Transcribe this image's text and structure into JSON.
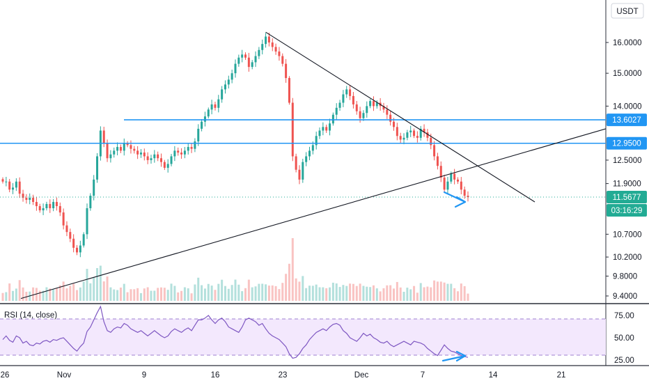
{
  "chart_data": {
    "type": "candlestick",
    "currency": "USDT",
    "price_axis": {
      "scale": "log",
      "ticks": [
        "16.0000",
        "15.0000",
        "14.0000",
        "12.5000",
        "11.9000",
        "10.7000",
        "10.2000",
        "9.8000",
        "9.4000"
      ]
    },
    "date_axis": {
      "ticks": [
        "26",
        "Nov",
        "9",
        "16",
        "23",
        "Dec",
        "7",
        "14",
        "21"
      ]
    },
    "price_series": [
      11.95,
      11.95,
      11.75,
      11.8,
      11.95,
      11.65,
      11.55,
      11.5,
      11.55,
      11.45,
      11.35,
      11.25,
      11.3,
      11.4,
      11.3,
      11.45,
      11.35,
      11.2,
      10.9,
      10.75,
      10.6,
      10.4,
      10.3,
      10.45,
      10.7,
      11.3,
      11.6,
      12.0,
      12.6,
      13.3,
      12.95,
      12.55,
      12.65,
      12.75,
      12.85,
      12.75,
      12.95,
      12.9,
      12.8,
      12.75,
      12.65,
      12.7,
      12.6,
      12.5,
      12.55,
      12.65,
      12.55,
      12.45,
      12.3,
      12.4,
      12.6,
      12.75,
      12.7,
      12.65,
      12.75,
      12.85,
      12.8,
      13.0,
      13.35,
      13.55,
      13.7,
      13.9,
      14.05,
      13.95,
      14.2,
      14.5,
      14.65,
      14.8,
      15.0,
      15.3,
      15.5,
      15.6,
      15.5,
      15.2,
      15.35,
      15.55,
      15.75,
      15.95,
      16.2,
      16.0,
      15.85,
      15.7,
      15.55,
      15.3,
      14.85,
      14.1,
      12.6,
      12.25,
      12.0,
      12.45,
      12.6,
      12.75,
      12.9,
      13.15,
      13.3,
      13.4,
      13.3,
      13.5,
      13.75,
      13.95,
      14.1,
      14.35,
      14.5,
      14.3,
      14.05,
      13.85,
      13.65,
      13.8,
      14.0,
      14.15,
      14.0,
      14.1,
      14.0,
      13.9,
      13.75,
      13.55,
      13.4,
      13.15,
      13.05,
      13.1,
      13.25,
      13.3,
      13.15,
      13.1,
      13.35,
      13.25,
      13.1,
      12.9,
      12.6,
      12.35,
      12.05,
      11.75,
      11.95,
      12.15,
      12.0,
      11.95,
      11.75,
      11.6,
      11.5677
    ],
    "last_price": "11.5677",
    "countdown": "03:16:29",
    "horizontal_levels": [
      "13.6027",
      "12.9500"
    ],
    "indicator": {
      "name": "RSI (14, close)",
      "ticks": [
        "75.00",
        "50.00",
        "25.00"
      ],
      "overbought": 70,
      "oversold": 30,
      "values": [
        48,
        52,
        47,
        45,
        52,
        50,
        44,
        46,
        42,
        41,
        44,
        43,
        46,
        47,
        45,
        48,
        47,
        49,
        50,
        46,
        42,
        38,
        35,
        40,
        44,
        57,
        62,
        70,
        78,
        85,
        68,
        58,
        56,
        60,
        62,
        61,
        66,
        64,
        60,
        58,
        56,
        58,
        55,
        52,
        55,
        58,
        55,
        52,
        50,
        52,
        57,
        60,
        58,
        56,
        59,
        61,
        58,
        64,
        70,
        70,
        72,
        75,
        70,
        66,
        70,
        72,
        68,
        62,
        60,
        58,
        56,
        62,
        70,
        72,
        70,
        68,
        64,
        66,
        60,
        55,
        52,
        50,
        48,
        44,
        40,
        32,
        27,
        28,
        32,
        38,
        42,
        48,
        52,
        56,
        58,
        60,
        58,
        62,
        65,
        66,
        64,
        58,
        55,
        50,
        48,
        46,
        50,
        55,
        52,
        54,
        50,
        48,
        45,
        44,
        46,
        42,
        40,
        42,
        44,
        46,
        44,
        42,
        46,
        45,
        44,
        42,
        38,
        35,
        32,
        30,
        36,
        42,
        38,
        35,
        34,
        32,
        30,
        29,
        28
      ]
    }
  },
  "colors": {
    "up": "#26a69a",
    "down": "#ef5350",
    "level_line": "#2196f3",
    "trend_line": "#131722",
    "rsi_line": "#7e57c2",
    "rsi_band": "#f3e8fd",
    "last_price_tag": "#22ab94",
    "grid_border": "#2a2e39"
  }
}
